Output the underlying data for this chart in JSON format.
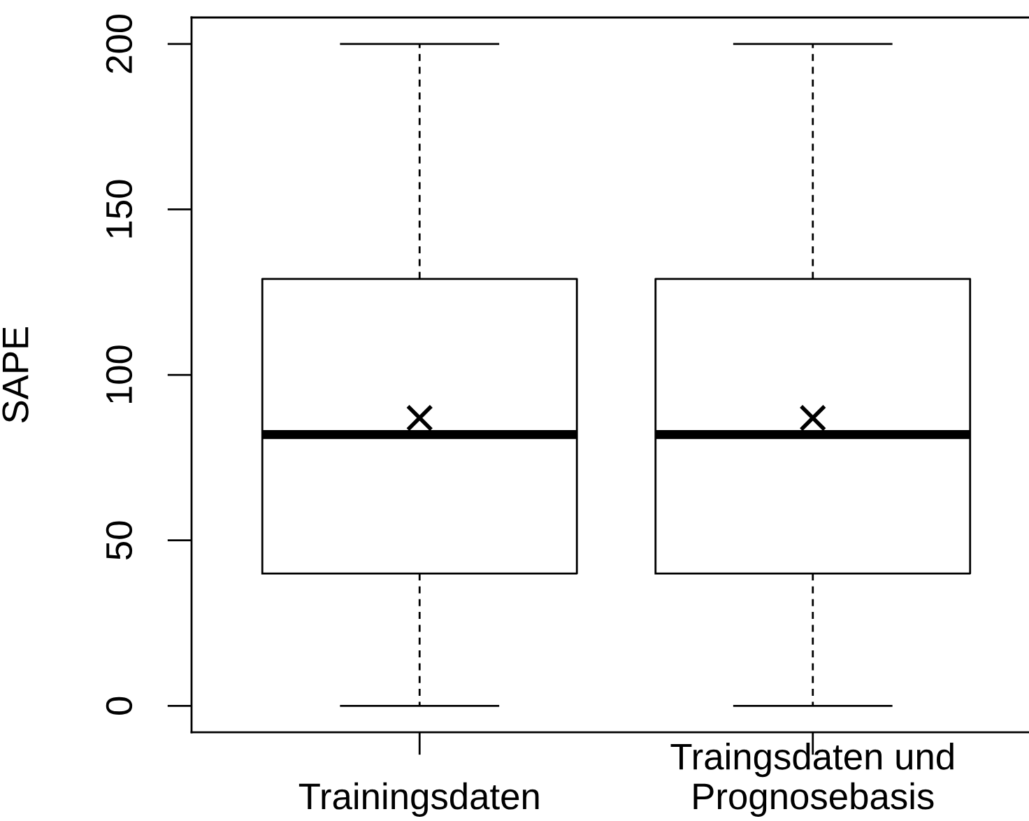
{
  "chart_data": {
    "type": "box",
    "ylabel": "SAPE",
    "categories": [
      "Trainingsdaten",
      "Traingsdaten und\nPrognosebasis"
    ],
    "boxes": [
      {
        "low": 0,
        "q1": 40,
        "median": 82,
        "q3": 129,
        "high": 200,
        "mean": 87
      },
      {
        "low": 0,
        "q1": 40,
        "median": 82,
        "q3": 129,
        "high": 200,
        "mean": 87
      }
    ],
    "ylim": [
      -8,
      208
    ],
    "yticks": [
      0,
      50,
      100,
      150,
      200
    ],
    "marker": "cross",
    "line_style": "dashed"
  }
}
